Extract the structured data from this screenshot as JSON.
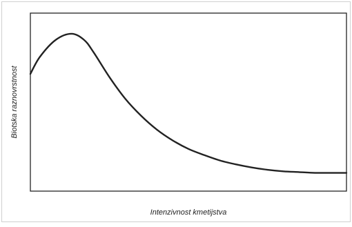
{
  "chart_data": {
    "type": "line",
    "title": "",
    "xlabel": "Intenzivnost kmetijstva",
    "ylabel": "Biotska raznovrstnost",
    "xlim": [
      0,
      1
    ],
    "ylim": [
      0,
      1
    ],
    "grid": false,
    "legend": "none",
    "series": [
      {
        "x": [
          0,
          0.03,
          0.08,
          0.13,
          0.17,
          0.2,
          0.25,
          0.3,
          0.35,
          0.4,
          0.45,
          0.5,
          0.55,
          0.6,
          0.65,
          0.7,
          0.75,
          0.8,
          0.85,
          0.9,
          0.95,
          1.0
        ],
        "values": [
          0.66,
          0.77,
          0.88,
          0.92,
          0.88,
          0.8,
          0.64,
          0.5,
          0.39,
          0.3,
          0.23,
          0.175,
          0.135,
          0.1,
          0.075,
          0.055,
          0.04,
          0.03,
          0.025,
          0.02,
          0.02,
          0.02
        ]
      }
    ],
    "colors": {
      "line": "#222222",
      "frame": "#222222"
    }
  }
}
